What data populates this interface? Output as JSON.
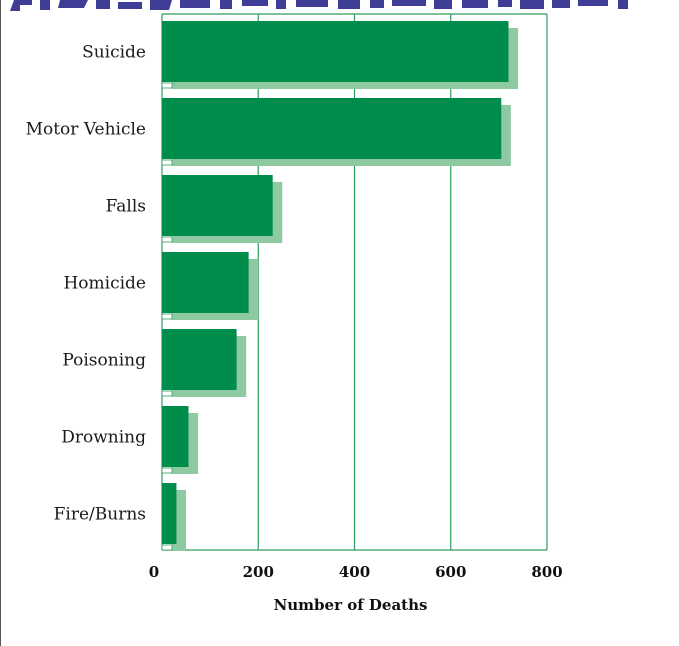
{
  "chart_data": {
    "type": "bar",
    "orientation": "horizontal",
    "title": "",
    "xlabel": "Number of Deaths",
    "ylabel": "",
    "categories": [
      "Suicide",
      "Motor Vehicle",
      "Falls",
      "Homicide",
      "Poisoning",
      "Drowning",
      "Fire/Burns"
    ],
    "values": [
      720,
      705,
      230,
      180,
      155,
      55,
      30
    ],
    "xlim": [
      0,
      800
    ],
    "xticks": [
      "0",
      "200",
      "400",
      "600",
      "800"
    ],
    "grid": true,
    "legend": "none"
  },
  "colors": {
    "bar": "#008c4a",
    "bar_shadow": "#8ec9a2",
    "grid": "#2e9c62",
    "header_text": "#2a2a8c"
  }
}
